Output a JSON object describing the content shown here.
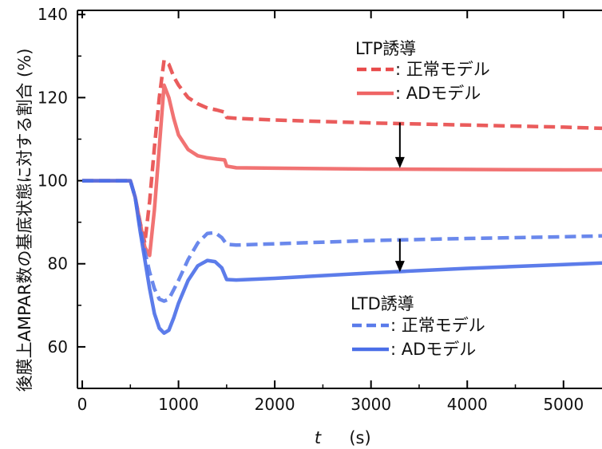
{
  "chart_data": {
    "type": "line",
    "title": "",
    "xlabel_symbol": "t",
    "xlabel_unit": "(s)",
    "ylabel": "後膜上AMPAR数の基底状態に対する割合 (%)",
    "xlim": [
      -50,
      5400
    ],
    "ylim": [
      50,
      141
    ],
    "xticks": [
      0,
      1000,
      2000,
      3000,
      4000,
      5000
    ],
    "yticks": [
      60,
      80,
      100,
      120,
      140
    ],
    "grid": false,
    "legend_groups": [
      {
        "title": "LTP誘導",
        "position": "top-right",
        "entries": [
          {
            "series": "ltp_normal",
            "label": ": 正常モデル"
          },
          {
            "series": "ltp_ad",
            "label": ": ADモデル"
          }
        ]
      },
      {
        "title": "LTD誘導",
        "position": "bottom-right",
        "entries": [
          {
            "series": "ltd_normal",
            "label": ": 正常モデル"
          },
          {
            "series": "ltd_ad",
            "label": ": ADモデル"
          }
        ]
      }
    ],
    "series": [
      {
        "id": "ltp_normal",
        "color": "#e84a4a",
        "style": "dashed",
        "points": [
          [
            0,
            100
          ],
          [
            500,
            100
          ],
          [
            550,
            96
          ],
          [
            600,
            90
          ],
          [
            650,
            85
          ],
          [
            700,
            95
          ],
          [
            750,
            108
          ],
          [
            800,
            120
          ],
          [
            850,
            129
          ],
          [
            900,
            128
          ],
          [
            950,
            125
          ],
          [
            1000,
            123
          ],
          [
            1100,
            120
          ],
          [
            1200,
            118.5
          ],
          [
            1300,
            117.5
          ],
          [
            1400,
            117
          ],
          [
            1480,
            116.5
          ],
          [
            1500,
            115.2
          ],
          [
            1600,
            115
          ],
          [
            2000,
            114.6
          ],
          [
            3000,
            113.9
          ],
          [
            4000,
            113.4
          ],
          [
            5000,
            112.9
          ],
          [
            5400,
            112.6
          ]
        ]
      },
      {
        "id": "ltp_ad",
        "color": "#ef6464",
        "style": "solid",
        "points": [
          [
            0,
            100
          ],
          [
            500,
            100
          ],
          [
            550,
            96
          ],
          [
            600,
            90
          ],
          [
            650,
            84
          ],
          [
            700,
            82
          ],
          [
            750,
            93
          ],
          [
            800,
            108
          ],
          [
            850,
            123
          ],
          [
            900,
            120
          ],
          [
            950,
            115
          ],
          [
            1000,
            111
          ],
          [
            1100,
            107.5
          ],
          [
            1200,
            106
          ],
          [
            1300,
            105.5
          ],
          [
            1400,
            105.2
          ],
          [
            1480,
            105
          ],
          [
            1500,
            103.5
          ],
          [
            1600,
            103.1
          ],
          [
            2000,
            103
          ],
          [
            3000,
            102.8
          ],
          [
            4000,
            102.7
          ],
          [
            5000,
            102.6
          ],
          [
            5400,
            102.6
          ]
        ]
      },
      {
        "id": "ltd_normal",
        "color": "#5a7bea",
        "style": "dashed",
        "points": [
          [
            0,
            100
          ],
          [
            500,
            100
          ],
          [
            550,
            96
          ],
          [
            600,
            89
          ],
          [
            650,
            83
          ],
          [
            700,
            78
          ],
          [
            750,
            74
          ],
          [
            800,
            71.5
          ],
          [
            850,
            71
          ],
          [
            900,
            71.5
          ],
          [
            1000,
            76
          ],
          [
            1100,
            81
          ],
          [
            1200,
            85
          ],
          [
            1300,
            87.3
          ],
          [
            1380,
            87.5
          ],
          [
            1450,
            86.3
          ],
          [
            1500,
            84.7
          ],
          [
            1600,
            84.5
          ],
          [
            2000,
            84.8
          ],
          [
            3000,
            85.6
          ],
          [
            4000,
            86.1
          ],
          [
            5000,
            86.5
          ],
          [
            5400,
            86.7
          ]
        ]
      },
      {
        "id": "ltd_ad",
        "color": "#4a6ee8",
        "style": "solid",
        "points": [
          [
            0,
            100
          ],
          [
            500,
            100
          ],
          [
            550,
            96
          ],
          [
            600,
            88
          ],
          [
            650,
            81
          ],
          [
            700,
            74
          ],
          [
            750,
            68
          ],
          [
            800,
            64.5
          ],
          [
            850,
            63.3
          ],
          [
            900,
            64
          ],
          [
            950,
            67
          ],
          [
            1000,
            70.5
          ],
          [
            1100,
            76
          ],
          [
            1200,
            79.5
          ],
          [
            1300,
            80.8
          ],
          [
            1380,
            80.5
          ],
          [
            1450,
            79
          ],
          [
            1500,
            76.2
          ],
          [
            1600,
            76.1
          ],
          [
            2000,
            76.5
          ],
          [
            3000,
            77.8
          ],
          [
            4000,
            78.9
          ],
          [
            5000,
            79.8
          ],
          [
            5400,
            80.2
          ]
        ]
      }
    ],
    "annotations": [
      {
        "type": "arrow",
        "from": [
          3300,
          114
        ],
        "to": [
          3300,
          103
        ],
        "color": "#000000"
      },
      {
        "type": "arrow",
        "from": [
          3300,
          86
        ],
        "to": [
          3300,
          78
        ],
        "color": "#000000"
      }
    ]
  }
}
